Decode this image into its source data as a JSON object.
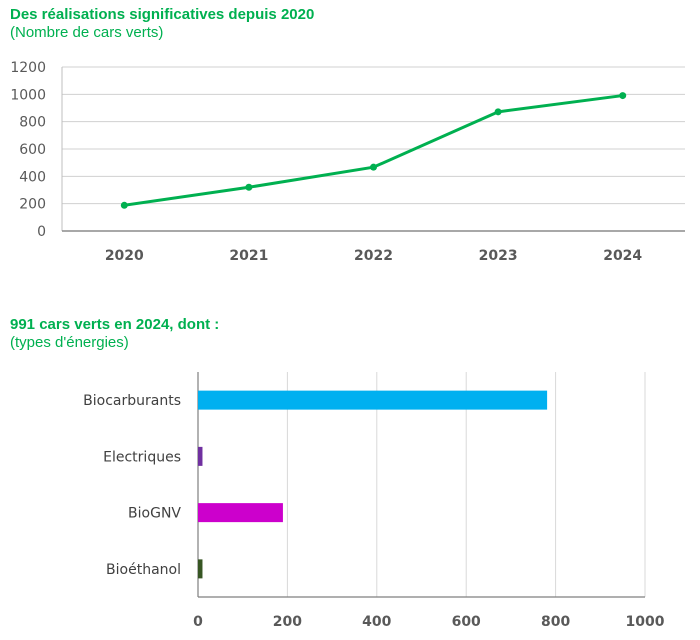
{
  "chart_data": [
    {
      "type": "line",
      "title": "Des réalisations significatives depuis 2020",
      "subtitle": "(Nombre de cars verts)",
      "xlabel": "",
      "ylabel": "",
      "categories": [
        "2020",
        "2021",
        "2022",
        "2023",
        "2024"
      ],
      "values": [
        188,
        320,
        467,
        872,
        991
      ],
      "ylim": [
        0,
        1200
      ],
      "yticks": [
        0,
        200,
        400,
        600,
        800,
        1000,
        1200
      ],
      "grid": true,
      "legend": "none",
      "color": "#00B050"
    },
    {
      "type": "bar",
      "orientation": "horizontal",
      "title": "991 cars verts en 2024, dont :",
      "subtitle": "(types d'énergies)",
      "xlabel": "",
      "ylabel": "",
      "categories": [
        "Biocarburants",
        "Electriques",
        "BioGNV",
        "Bioéthanol"
      ],
      "values": [
        781,
        10,
        190,
        10
      ],
      "colors": [
        "#00B0F0",
        "#7030A0",
        "#CC00CC",
        "#375623"
      ],
      "xlim": [
        0,
        1000
      ],
      "xticks": [
        0,
        200,
        400,
        600,
        800,
        1000
      ],
      "grid": true,
      "legend": "none"
    }
  ]
}
